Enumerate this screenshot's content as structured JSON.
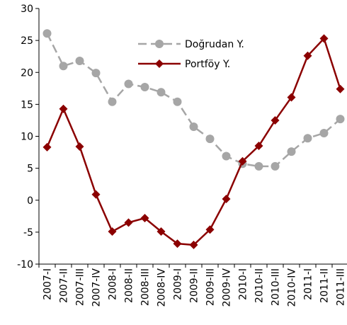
{
  "chart_data": {
    "type": "line",
    "categories": [
      "2007-I",
      "2007-II",
      "2007-III",
      "2007-IV",
      "2008-I",
      "2008-II",
      "2008-III",
      "2008-IV",
      "2009-I",
      "2009-II",
      "2009-III",
      "2009-IV",
      "2010-I",
      "2010-II",
      "2010-III",
      "2010-IV",
      "2011-I",
      "2011-II",
      "2011-III"
    ],
    "series": [
      {
        "name": "Doğrudan Y.",
        "color": "#a6a6a6",
        "dash": true,
        "marker": "circle",
        "values": [
          26.1,
          21.0,
          21.8,
          19.9,
          15.4,
          18.2,
          17.7,
          16.9,
          15.4,
          11.5,
          9.6,
          6.9,
          5.7,
          5.3,
          5.3,
          7.6,
          9.7,
          10.5,
          12.7
        ]
      },
      {
        "name": "Portföy Y.",
        "color": "#8b0000",
        "dash": false,
        "marker": "diamond",
        "values": [
          8.3,
          14.3,
          8.4,
          0.9,
          -4.9,
          -3.5,
          -2.8,
          -4.9,
          -6.8,
          -7.0,
          -4.6,
          0.2,
          6.1,
          8.5,
          12.5,
          16.1,
          22.6,
          25.3,
          17.4
        ]
      }
    ],
    "ylim": [
      -10,
      30
    ],
    "yticks": [
      -10,
      -5,
      0,
      5,
      10,
      15,
      20,
      25,
      30
    ],
    "grid": false,
    "legend": "upper center"
  }
}
